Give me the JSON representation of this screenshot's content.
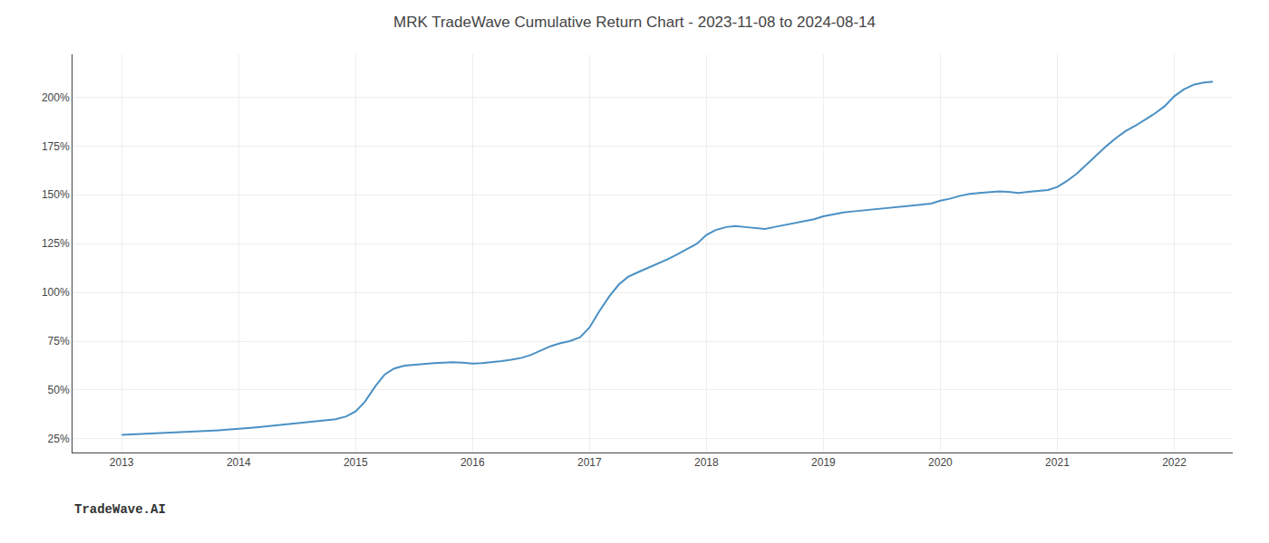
{
  "chart_data": {
    "type": "line",
    "title": "MRK TradeWave Cumulative Return Chart - 2023-11-08 to 2024-08-14",
    "annotations": [
      "TradeWave.AI"
    ],
    "x": [
      2013.0,
      2013.08,
      2013.17,
      2013.25,
      2013.33,
      2013.42,
      2013.5,
      2013.58,
      2013.67,
      2013.75,
      2013.83,
      2013.92,
      2014.0,
      2014.08,
      2014.17,
      2014.25,
      2014.33,
      2014.42,
      2014.5,
      2014.58,
      2014.67,
      2014.75,
      2014.83,
      2014.92,
      2015.0,
      2015.08,
      2015.17,
      2015.25,
      2015.33,
      2015.42,
      2015.5,
      2015.58,
      2015.67,
      2015.75,
      2015.83,
      2015.92,
      2016.0,
      2016.08,
      2016.17,
      2016.25,
      2016.33,
      2016.42,
      2016.5,
      2016.58,
      2016.67,
      2016.75,
      2016.83,
      2016.92,
      2017.0,
      2017.08,
      2017.17,
      2017.25,
      2017.33,
      2017.42,
      2017.5,
      2017.58,
      2017.67,
      2017.75,
      2017.83,
      2017.92,
      2018.0,
      2018.08,
      2018.17,
      2018.25,
      2018.33,
      2018.42,
      2018.5,
      2018.58,
      2018.67,
      2018.75,
      2018.83,
      2018.92,
      2019.0,
      2019.08,
      2019.17,
      2019.25,
      2019.33,
      2019.42,
      2019.5,
      2019.58,
      2019.67,
      2019.75,
      2019.83,
      2019.92,
      2020.0,
      2020.08,
      2020.17,
      2020.25,
      2020.33,
      2020.42,
      2020.5,
      2020.58,
      2020.67,
      2020.75,
      2020.83,
      2020.92,
      2021.0,
      2021.08,
      2021.17,
      2021.25,
      2021.33,
      2021.42,
      2021.5,
      2021.58,
      2021.67,
      2021.75,
      2021.83,
      2021.92,
      2022.0,
      2022.08,
      2022.17,
      2022.25,
      2022.33
    ],
    "values": [
      27.0,
      27.2,
      27.4,
      27.6,
      27.8,
      28.0,
      28.2,
      28.5,
      28.8,
      29.1,
      29.4,
      29.7,
      30.0,
      30.5,
      31.0,
      31.5,
      32.0,
      32.5,
      33.0,
      33.5,
      34.0,
      34.5,
      35.0,
      36.5,
      39.0,
      44.0,
      52.0,
      58.0,
      61.0,
      62.5,
      63.0,
      63.5,
      63.8,
      64.0,
      64.2,
      64.0,
      63.5,
      63.8,
      64.2,
      64.8,
      65.5,
      66.5,
      68.0,
      70.0,
      72.5,
      74.0,
      75.0,
      77.0,
      82.0,
      90.0,
      98.0,
      104.0,
      108.0,
      110.5,
      112.5,
      114.5,
      117.0,
      119.5,
      122.0,
      125.0,
      129.5,
      132.0,
      133.5,
      134.0,
      133.5,
      133.0,
      132.5,
      133.5,
      134.5,
      135.5,
      136.5,
      137.5,
      139.0,
      140.0,
      141.0,
      141.5,
      142.0,
      142.5,
      143.0,
      143.5,
      144.0,
      144.5,
      145.0,
      145.5,
      147.0,
      148.0,
      149.5,
      150.5,
      151.0,
      151.5,
      151.8,
      151.5,
      151.0,
      151.5,
      152.0,
      152.5,
      154.0,
      157.0,
      161.0,
      165.5,
      170.0,
      175.0,
      179.0,
      182.5,
      185.5,
      188.5,
      191.5,
      195.5,
      200.5,
      204.0,
      206.5,
      207.5,
      208.0
    ],
    "color": "#4a90c4",
    "xlim": [
      2012.58,
      2022.5
    ],
    "xticks": [
      2013,
      2014,
      2015,
      2016,
      2017,
      2018,
      2019,
      2020,
      2021,
      2022
    ],
    "ylim": [
      18,
      222
    ],
    "yticks": [
      {
        "value": 25,
        "label": "25%"
      },
      {
        "value": 50,
        "label": "50%"
      },
      {
        "value": 75,
        "label": "75%"
      },
      {
        "value": 100,
        "label": "100%"
      },
      {
        "value": 125,
        "label": "125%"
      },
      {
        "value": 150,
        "label": "150%"
      },
      {
        "value": 175,
        "label": "175%"
      },
      {
        "value": 200,
        "label": "200%"
      }
    ],
    "grid": true
  }
}
